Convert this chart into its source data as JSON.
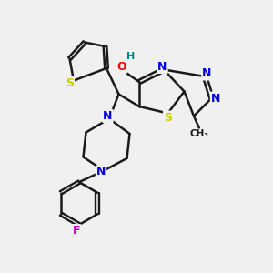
{
  "background_color": "#f0f0f0",
  "bond_color": "#1a1a1a",
  "atom_colors": {
    "N": "#0000ee",
    "S": "#cccc00",
    "O": "#ff0000",
    "F": "#cc00cc",
    "H": "#008888",
    "C": "#1a1a1a"
  },
  "figsize": [
    3.0,
    3.0
  ],
  "dpi": 100
}
